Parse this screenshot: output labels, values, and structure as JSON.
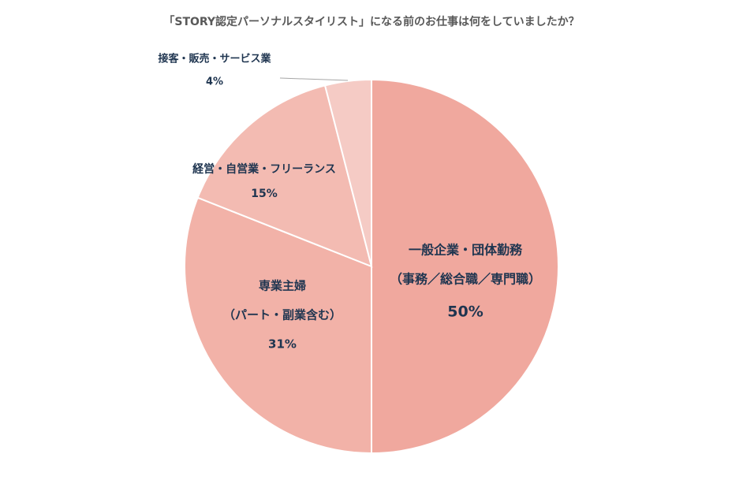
{
  "chart_data": {
    "type": "pie",
    "title": "「STORY認定パーソナルスタイリスト」になる前のお仕事は何をしていましたか？",
    "categories": [
      [
        "一般企業・団体勤務",
        "（事務／総合職／専門職）"
      ],
      [
        "専業主婦",
        "（パート・副業含む）"
      ],
      [
        "経営・自営業・フリーランス"
      ],
      [
        "接客・販売・サービス業"
      ]
    ],
    "values": [
      50,
      31,
      15,
      4
    ],
    "value_labels": [
      "50%",
      "31%",
      "15%",
      "4%"
    ],
    "colors": [
      "#f0a89e",
      "#f2b2a8",
      "#f3bbb2",
      "#f5cbc5"
    ]
  }
}
